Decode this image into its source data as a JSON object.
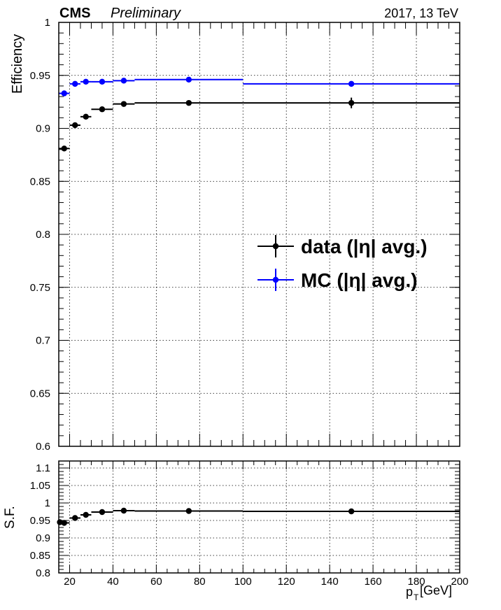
{
  "header": {
    "experiment": "CMS",
    "status": "Preliminary",
    "energy_label": "2017, 13 TeV"
  },
  "chart_data": [
    {
      "type": "scatter",
      "panel": "efficiency",
      "ylabel": "Efficiency",
      "xlim": [
        15,
        200
      ],
      "ylim": [
        0.6,
        1.0
      ],
      "y_ticks": [
        "0.6",
        "0.65",
        "0.7",
        "0.75",
        "0.8",
        "0.85",
        "0.9",
        "0.95",
        "1"
      ],
      "grid": true,
      "legend_position": "right-middle",
      "series": [
        {
          "name": "data (|η| avg.)",
          "color": "#000000",
          "points": [
            {
              "x": 17.5,
              "xlow": 15,
              "xhigh": 20,
              "y": 0.881,
              "yerr": 0.002
            },
            {
              "x": 22.5,
              "xlow": 20,
              "xhigh": 25,
              "y": 0.903,
              "yerr": 0.001
            },
            {
              "x": 27.5,
              "xlow": 25,
              "xhigh": 30,
              "y": 0.911,
              "yerr": 0.001
            },
            {
              "x": 35,
              "xlow": 30,
              "xhigh": 40,
              "y": 0.918,
              "yerr": 0.001
            },
            {
              "x": 45,
              "xlow": 40,
              "xhigh": 50,
              "y": 0.923,
              "yerr": 0.001
            },
            {
              "x": 75,
              "xlow": 50,
              "xhigh": 100,
              "y": 0.924,
              "yerr": 0.001
            },
            {
              "x": 150,
              "xlow": 100,
              "xhigh": 200,
              "y": 0.924,
              "yerr": 0.005
            }
          ]
        },
        {
          "name": "MC (|η| avg.)",
          "color": "#0000ff",
          "points": [
            {
              "x": 17.5,
              "xlow": 15,
              "xhigh": 20,
              "y": 0.933,
              "yerr": 0.001
            },
            {
              "x": 22.5,
              "xlow": 20,
              "xhigh": 25,
              "y": 0.942,
              "yerr": 0.001
            },
            {
              "x": 27.5,
              "xlow": 25,
              "xhigh": 30,
              "y": 0.944,
              "yerr": 0.001
            },
            {
              "x": 35,
              "xlow": 30,
              "xhigh": 40,
              "y": 0.944,
              "yerr": 0.001
            },
            {
              "x": 45,
              "xlow": 40,
              "xhigh": 50,
              "y": 0.945,
              "yerr": 0.001
            },
            {
              "x": 75,
              "xlow": 50,
              "xhigh": 100,
              "y": 0.946,
              "yerr": 0.001
            },
            {
              "x": 150,
              "xlow": 100,
              "xhigh": 200,
              "y": 0.942,
              "yerr": 0.002
            }
          ]
        }
      ]
    },
    {
      "type": "scatter",
      "panel": "ratio",
      "ylabel": "S.F.",
      "xlabel_main": "p",
      "xlabel_sub": "T",
      "xlabel_unit": " [GeV]",
      "xlim": [
        15,
        200
      ],
      "ylim": [
        0.8,
        1.12
      ],
      "x_ticks": [
        "20",
        "40",
        "60",
        "80",
        "100",
        "120",
        "140",
        "160",
        "180",
        "200"
      ],
      "y_ticks": [
        "0.8",
        "0.85",
        "0.9",
        "0.95",
        "1",
        "1.05",
        "1.1"
      ],
      "grid": true,
      "series": [
        {
          "name": "",
          "color": "#000000",
          "points": [
            {
              "x": 15.5,
              "xlow": 15,
              "xhigh": 16,
              "y": 0.945,
              "yerr": 0.003
            },
            {
              "x": 17.5,
              "xlow": 16,
              "xhigh": 20,
              "y": 0.943,
              "yerr": 0.003
            },
            {
              "x": 22.5,
              "xlow": 20,
              "xhigh": 25,
              "y": 0.957,
              "yerr": 0.002
            },
            {
              "x": 27.5,
              "xlow": 25,
              "xhigh": 30,
              "y": 0.966,
              "yerr": 0.002
            },
            {
              "x": 35,
              "xlow": 30,
              "xhigh": 40,
              "y": 0.974,
              "yerr": 0.002
            },
            {
              "x": 45,
              "xlow": 40,
              "xhigh": 50,
              "y": 0.978,
              "yerr": 0.002
            },
            {
              "x": 75,
              "xlow": 50,
              "xhigh": 100,
              "y": 0.977,
              "yerr": 0.002
            },
            {
              "x": 150,
              "xlow": 100,
              "xhigh": 200,
              "y": 0.976,
              "yerr": 0.002
            }
          ]
        }
      ]
    }
  ]
}
